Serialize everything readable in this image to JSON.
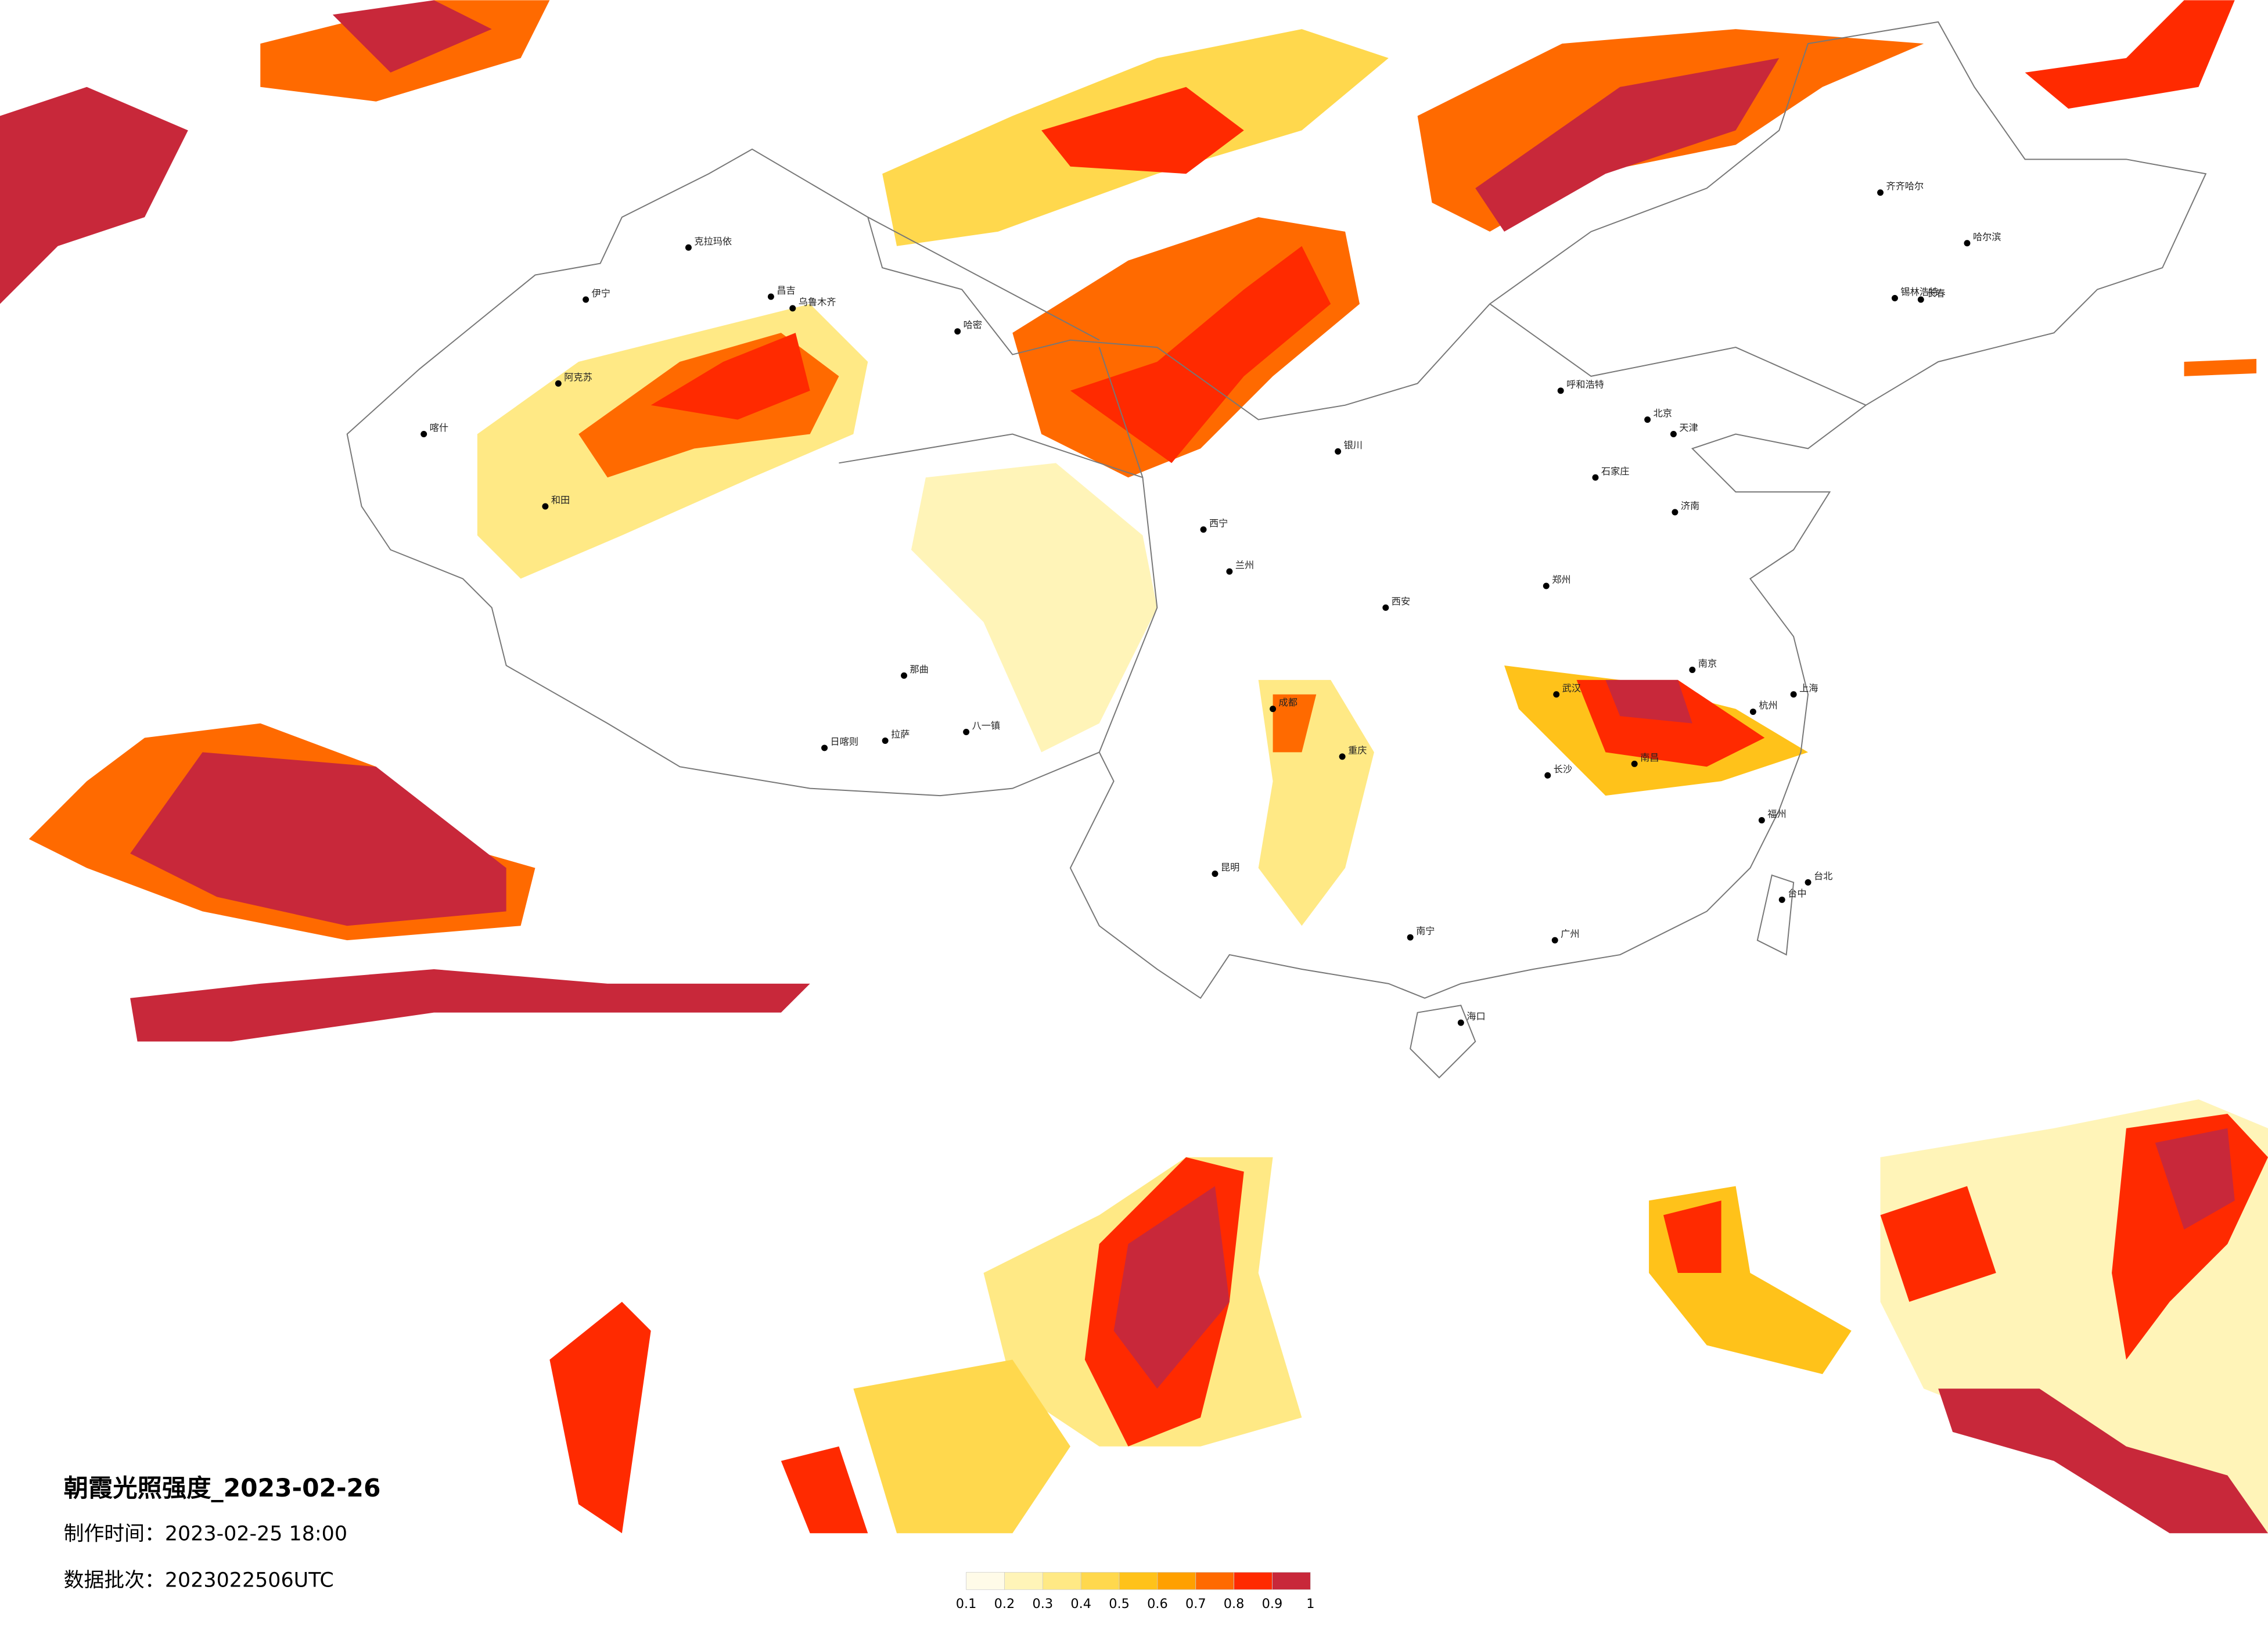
{
  "header": {
    "title": "朝霞光照强度_2023-02-26",
    "made_time": "制作时间：2023-02-25 18:00",
    "batch": "数据批次：2023022506UTC"
  },
  "legend": {
    "ticks": [
      0.1,
      0.2,
      0.3,
      0.4,
      0.5,
      0.6,
      0.7,
      0.8,
      0.9,
      1
    ],
    "colors": [
      "#fffbe8",
      "#fff4b8",
      "#ffe985",
      "#ffd84d",
      "#ffc21a",
      "#ffa000",
      "#ff6a00",
      "#ff2a00",
      "#c8283a"
    ]
  },
  "cities": [
    {
      "name": "克拉玛依"
    },
    {
      "name": "伊宁"
    },
    {
      "name": "昌吉"
    },
    {
      "name": "乌鲁木齐"
    },
    {
      "name": "哈密"
    },
    {
      "name": "阿克苏"
    },
    {
      "name": "喀什"
    },
    {
      "name": "和田"
    },
    {
      "name": "那曲"
    },
    {
      "name": "拉萨"
    },
    {
      "name": "日喀则"
    },
    {
      "name": "八一镇"
    },
    {
      "name": "西宁"
    },
    {
      "name": "兰州"
    },
    {
      "name": "银川"
    },
    {
      "name": "呼和浩特"
    },
    {
      "name": "锡林浩特"
    },
    {
      "name": "齐齐哈尔"
    },
    {
      "name": "哈尔滨"
    },
    {
      "name": "长春"
    },
    {
      "name": "北京"
    },
    {
      "name": "天津"
    },
    {
      "name": "石家庄"
    },
    {
      "name": "济南"
    },
    {
      "name": "郑州"
    },
    {
      "name": "西安"
    },
    {
      "name": "成都"
    },
    {
      "name": "重庆"
    },
    {
      "name": "武汉"
    },
    {
      "name": "南京"
    },
    {
      "name": "上海"
    },
    {
      "name": "杭州"
    },
    {
      "name": "南昌"
    },
    {
      "name": "长沙"
    },
    {
      "name": "福州"
    },
    {
      "name": "广州"
    },
    {
      "name": "南宁"
    },
    {
      "name": "昆明"
    },
    {
      "name": "海口"
    },
    {
      "name": "台北"
    },
    {
      "name": "台中"
    }
  ]
}
